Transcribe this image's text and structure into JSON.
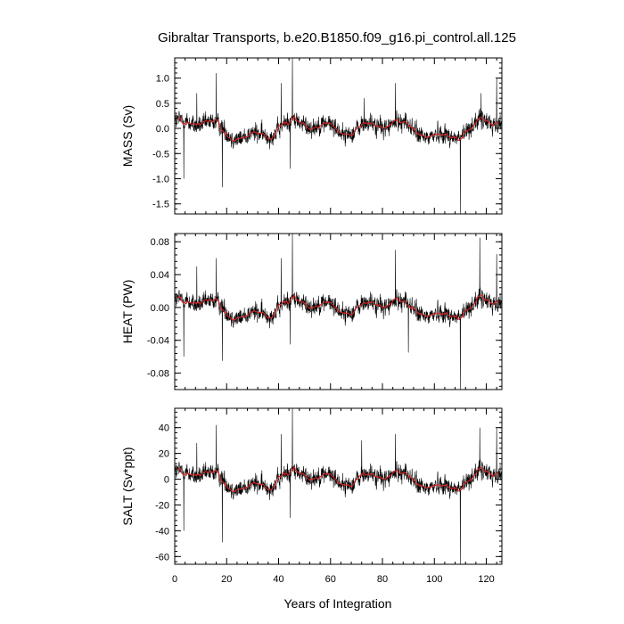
{
  "chart_data": {
    "type": "line",
    "title": "Gibraltar Transports, b.e20.B1850.f09_g16.pi_control.all.125",
    "xlabel": "Years of Integration",
    "xlim": [
      0,
      126
    ],
    "xticks": [
      0,
      20,
      40,
      60,
      80,
      100,
      120
    ],
    "xtick_labels": [
      "0",
      "20",
      "40",
      "60",
      "80",
      "100",
      "120"
    ],
    "colors": {
      "raw": "#000000",
      "smooth": "#d62728"
    },
    "panels": [
      {
        "ylabel": "MASS (Sv)",
        "ylim": [
          -1.7,
          1.4
        ],
        "yticks": [
          1.0,
          0.5,
          0.0,
          -0.5,
          -1.0,
          -1.5
        ],
        "ytick_labels": [
          "1.0",
          "0.5",
          "0.0",
          "-0.5",
          "-1.0",
          "-1.5"
        ],
        "spikes": [
          {
            "x": 3.5,
            "y": -1.0
          },
          {
            "x": 8.5,
            "y": 0.7
          },
          {
            "x": 16.0,
            "y": 1.1
          },
          {
            "x": 18.3,
            "y": -1.17
          },
          {
            "x": 41.0,
            "y": 0.9
          },
          {
            "x": 44.5,
            "y": -0.8
          },
          {
            "x": 45.3,
            "y": 1.4
          },
          {
            "x": 85.0,
            "y": 0.9
          },
          {
            "x": 110.0,
            "y": -1.7
          },
          {
            "x": 124.0,
            "y": 1.0
          },
          {
            "x": 118.0,
            "y": 0.7
          },
          {
            "x": 73.0,
            "y": 0.6
          }
        ]
      },
      {
        "ylabel": "HEAT (PW)",
        "ylim": [
          -0.1,
          0.09
        ],
        "yticks": [
          0.08,
          0.04,
          0.0,
          -0.04,
          -0.08
        ],
        "ytick_labels": [
          "0.08",
          "0.04",
          "0.00",
          "-0.04",
          "-0.08"
        ],
        "spikes": [
          {
            "x": 3.5,
            "y": -0.06
          },
          {
            "x": 8.5,
            "y": 0.05
          },
          {
            "x": 16.0,
            "y": 0.06
          },
          {
            "x": 18.3,
            "y": -0.065
          },
          {
            "x": 41.0,
            "y": 0.06
          },
          {
            "x": 44.5,
            "y": -0.045
          },
          {
            "x": 45.3,
            "y": 0.09
          },
          {
            "x": 85.0,
            "y": 0.07
          },
          {
            "x": 110.0,
            "y": -0.1
          },
          {
            "x": 117.5,
            "y": 0.085
          },
          {
            "x": 124.0,
            "y": 0.065
          },
          {
            "x": 90.0,
            "y": -0.055
          }
        ]
      },
      {
        "ylabel": "SALT (Sv*ppt)",
        "ylim": [
          -66,
          55
        ],
        "yticks": [
          40,
          20,
          0,
          -20,
          -40,
          -60
        ],
        "ytick_labels": [
          "40",
          "20",
          "0",
          "-20",
          "-40",
          "-60"
        ],
        "spikes": [
          {
            "x": 3.5,
            "y": -40
          },
          {
            "x": 8.5,
            "y": 28
          },
          {
            "x": 16.0,
            "y": 42
          },
          {
            "x": 18.3,
            "y": -49
          },
          {
            "x": 41.0,
            "y": 35
          },
          {
            "x": 44.5,
            "y": -30
          },
          {
            "x": 45.3,
            "y": 55
          },
          {
            "x": 85.0,
            "y": 35
          },
          {
            "x": 110.0,
            "y": -66
          },
          {
            "x": 117.5,
            "y": 40
          },
          {
            "x": 124.0,
            "y": 40
          },
          {
            "x": 72.0,
            "y": 30
          }
        ]
      }
    ]
  }
}
